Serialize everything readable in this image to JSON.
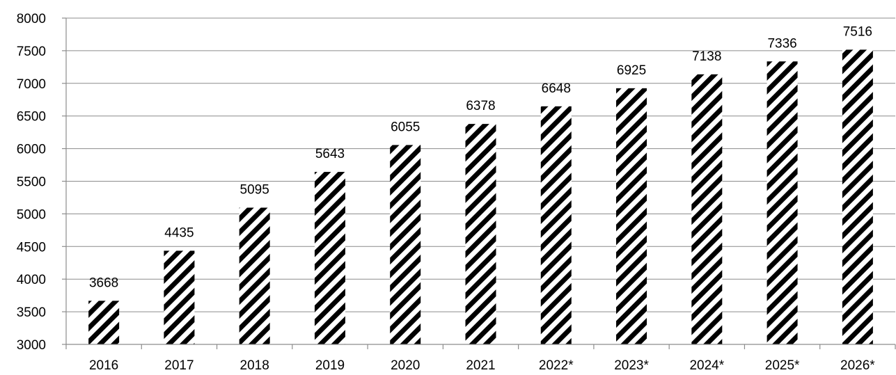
{
  "chart_data": {
    "type": "bar",
    "title": "",
    "xlabel": "",
    "ylabel": "",
    "categories": [
      "2016",
      "2017",
      "2018",
      "2019",
      "2020",
      "2021",
      "2022*",
      "2023*",
      "2024*",
      "2025*",
      "2026*"
    ],
    "values": [
      3668,
      4435,
      5095,
      5643,
      6055,
      6378,
      6648,
      6925,
      7138,
      7336,
      7516
    ],
    "ylim": [
      3000,
      8000
    ],
    "yticks": [
      3000,
      3500,
      4000,
      4500,
      5000,
      5500,
      6000,
      6500,
      7000,
      7500,
      8000
    ],
    "grid": true,
    "legend": "none",
    "bar_fill": "diagonal hatch",
    "colors": {
      "hatch": "#000000",
      "background": "#ffffff",
      "grid": "#8c8c8c"
    }
  }
}
